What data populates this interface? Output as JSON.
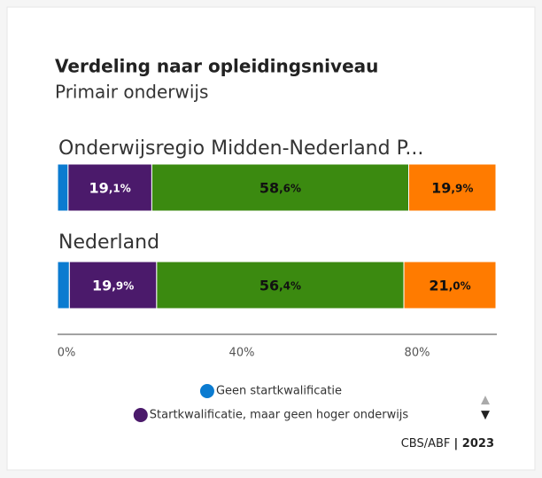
{
  "chart_data": {
    "type": "stacked-bar-horizontal",
    "title": "Verdeling naar opleidingsniveau",
    "subtitle": "Primair onderwijs",
    "categories": [
      "Onderwijsregio Midden-Nederland P...",
      "Nederland"
    ],
    "series": [
      {
        "name": "Geen startkwalificatie",
        "color": "#0b7bd0",
        "values": [
          2.4,
          2.7
        ]
      },
      {
        "name": "Startkwalificatie, maar geen hoger onderwijs",
        "color": "#4b1a6b",
        "values": [
          19.1,
          19.9
        ],
        "value_labels": [
          "19,1%",
          "19,9%"
        ]
      },
      {
        "color": "#3b8a10",
        "values": [
          58.6,
          56.4
        ],
        "value_labels": [
          "58,6%",
          "56,4%"
        ]
      },
      {
        "color": "#ff7b00",
        "values": [
          19.9,
          21.0
        ],
        "value_labels": [
          "19,9%",
          "21,0%"
        ]
      }
    ],
    "xlim": [
      0,
      100
    ],
    "xticks": [
      {
        "value": 0,
        "label": "0%"
      },
      {
        "value": 40,
        "label": "40%"
      },
      {
        "value": 80,
        "label": "80%"
      }
    ],
    "source": "CBS/ABF",
    "year": "| 2023"
  }
}
